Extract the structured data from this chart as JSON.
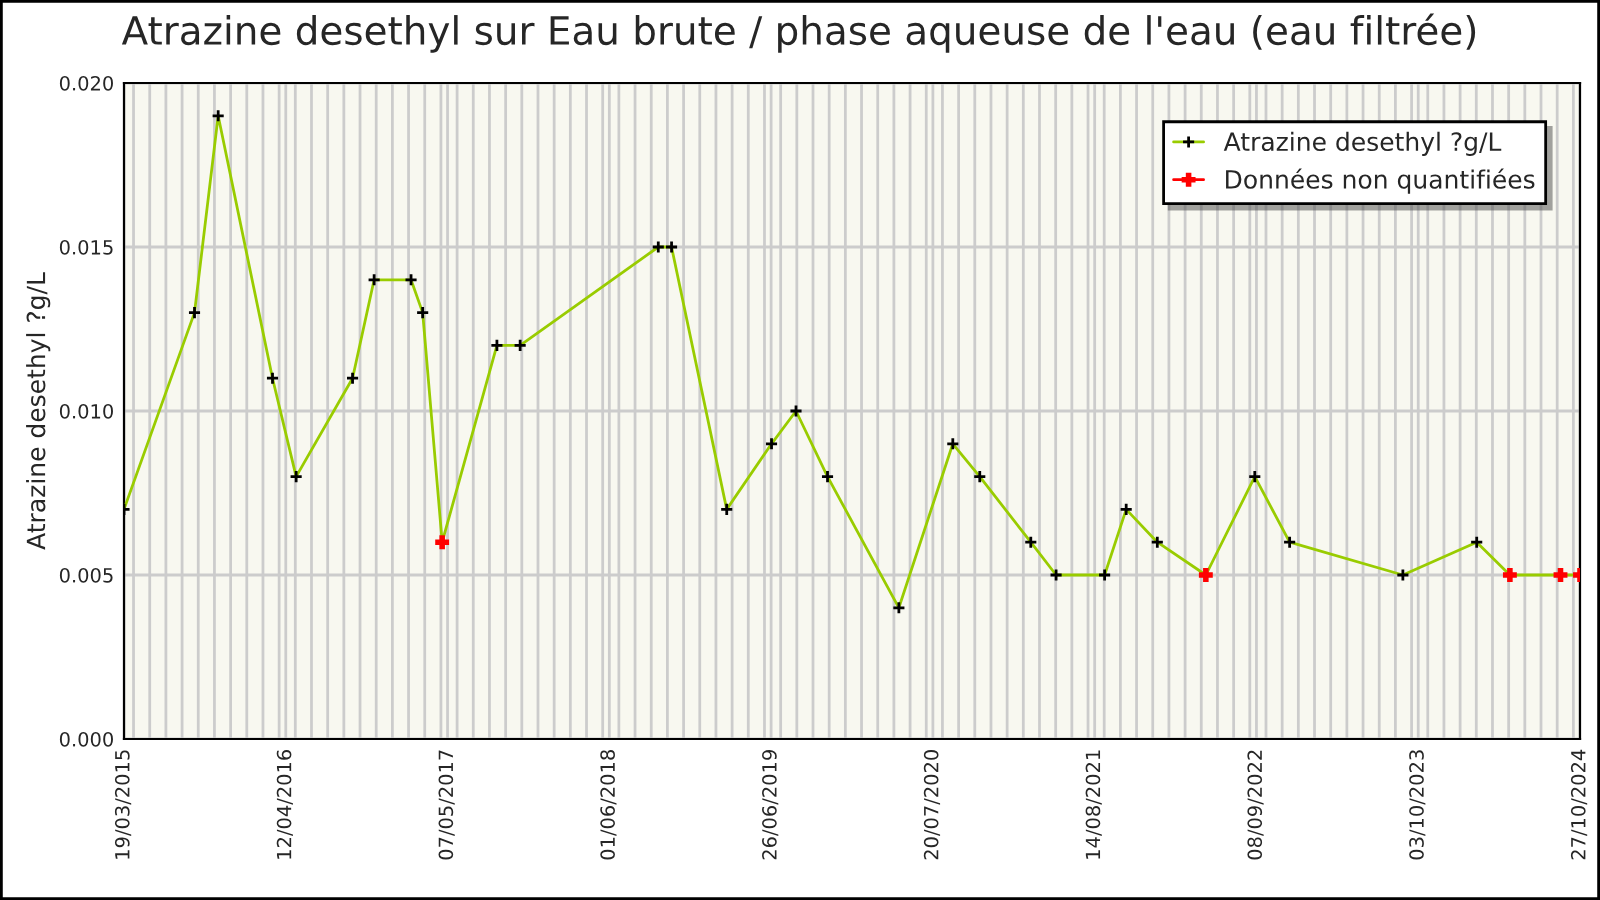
{
  "chart_data": {
    "type": "line",
    "title": "Atrazine desethyl sur Eau brute / phase aqueuse de l'eau (eau filtrée)",
    "ylabel": "Atrazine desethyl ?g/L",
    "x": [
      "2015-03-19",
      "2015-09-05",
      "2015-11-01",
      "2016-03-11",
      "2016-05-07",
      "2016-09-20",
      "2016-11-11",
      "2017-02-08",
      "2017-03-08",
      "2017-04-24",
      "2017-09-03",
      "2017-10-29",
      "2018-09-27",
      "2018-10-29",
      "2019-03-11",
      "2019-06-27",
      "2019-08-25",
      "2019-11-09",
      "2020-04-29",
      "2020-09-06",
      "2020-11-10",
      "2021-03-13",
      "2021-05-13",
      "2021-09-07",
      "2021-10-29",
      "2022-01-12",
      "2022-05-09",
      "2022-09-04",
      "2022-11-27",
      "2023-08-27",
      "2024-02-21",
      "2024-05-11",
      "2024-09-10",
      "2024-10-27"
    ],
    "series": [
      {
        "name": "Atrazine desethyl ?g/L",
        "color": "#99cc00",
        "values": [
          0.007,
          0.013,
          0.019,
          0.011,
          0.008,
          0.011,
          0.014,
          0.014,
          0.013,
          0.006,
          0.012,
          0.012,
          0.015,
          0.015,
          0.007,
          0.009,
          0.01,
          0.008,
          0.004,
          0.009,
          0.008,
          0.006,
          0.005,
          0.005,
          0.007,
          0.006,
          0.005,
          0.008,
          0.006,
          0.005,
          0.006,
          0.005,
          0.005,
          0.005
        ]
      },
      {
        "name": "Données non quantifiées",
        "type": "scatter",
        "color": "#ff0000",
        "values": [
          null,
          null,
          null,
          null,
          null,
          null,
          null,
          null,
          null,
          0.006,
          null,
          null,
          null,
          null,
          null,
          null,
          null,
          null,
          null,
          null,
          null,
          null,
          null,
          null,
          null,
          null,
          0.005,
          null,
          null,
          null,
          null,
          0.005,
          0.005,
          0.005
        ]
      }
    ],
    "xlim": [
      "2015-03-19",
      "2024-10-27"
    ],
    "xticks": [
      {
        "value": "2015-03-19",
        "label": "19/03/2015"
      },
      {
        "value": "2016-04-12",
        "label": "12/04/2016"
      },
      {
        "value": "2017-05-07",
        "label": "07/05/2017"
      },
      {
        "value": "2018-06-01",
        "label": "01/06/2018"
      },
      {
        "value": "2019-06-26",
        "label": "26/06/2019"
      },
      {
        "value": "2020-07-20",
        "label": "20/07/2020"
      },
      {
        "value": "2021-08-14",
        "label": "14/08/2021"
      },
      {
        "value": "2022-09-08",
        "label": "08/09/2022"
      },
      {
        "value": "2023-10-03",
        "label": "03/10/2023"
      },
      {
        "value": "2024-10-27",
        "label": "27/10/2024"
      }
    ],
    "ylim": [
      0,
      0.02
    ],
    "yticks": [
      {
        "value": 0,
        "label": "0.000"
      },
      {
        "value": 0.005,
        "label": "0.005"
      },
      {
        "value": 0.01,
        "label": "0.010"
      },
      {
        "value": 0.015,
        "label": "0.015"
      },
      {
        "value": 0.02,
        "label": "0.020"
      }
    ],
    "grid": true,
    "legend": "top right",
    "marker": "cross"
  }
}
